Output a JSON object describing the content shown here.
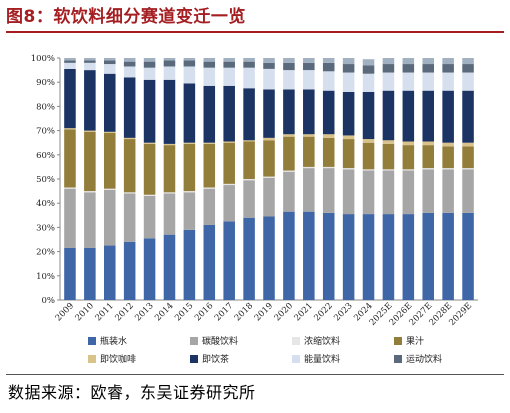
{
  "figure_title": "图8：软饮料细分赛道变迁一览",
  "source_text": "数据来源：欧睿，东吴证券研究所",
  "chart_data": {
    "type": "bar",
    "stacked": true,
    "title": "",
    "xlabel": "",
    "ylabel": "",
    "ylim": [
      0,
      100
    ],
    "grid": false,
    "legend_position": "bottom",
    "y_ticks": [
      "0%",
      "10%",
      "20%",
      "30%",
      "40%",
      "50%",
      "60%",
      "70%",
      "80%",
      "90%",
      "100%"
    ],
    "categories": [
      "2009",
      "2010",
      "2011",
      "2012",
      "2013",
      "2014",
      "2015",
      "2016",
      "2017",
      "2018",
      "2019",
      "2020",
      "2021",
      "2022",
      "2023",
      "2024",
      "2025E",
      "2026E",
      "2027E",
      "2028E",
      "2029E"
    ],
    "series": [
      {
        "name": "瓶装水",
        "color": "#3f67a8",
        "values": [
          21.5,
          21.5,
          22.5,
          24.0,
          25.5,
          27.0,
          29.0,
          31.0,
          32.5,
          34.0,
          34.5,
          36.5,
          36.5,
          36.0,
          35.5,
          35.5,
          35.5,
          35.5,
          36.0,
          36.0,
          36.0
        ]
      },
      {
        "name": "碳酸饮料",
        "color": "#a6a6a6",
        "values": [
          24.5,
          23.0,
          23.0,
          20.0,
          17.5,
          17.0,
          15.5,
          15.0,
          15.0,
          15.5,
          16.0,
          16.5,
          18.0,
          18.5,
          18.5,
          18.0,
          18.0,
          18.0,
          18.0,
          18.0,
          18.0
        ]
      },
      {
        "name": "浓缩饮料",
        "color": "#e6e6e6",
        "values": [
          0.5,
          0.5,
          0.5,
          0.5,
          0.5,
          0.5,
          0.5,
          0.5,
          0.5,
          0.5,
          0.5,
          0.5,
          0.5,
          0.5,
          0.5,
          0.5,
          0.5,
          0.5,
          0.5,
          0.5,
          0.5
        ]
      },
      {
        "name": "果汁",
        "color": "#927d3a",
        "values": [
          24.0,
          24.5,
          23.0,
          22.0,
          21.0,
          19.5,
          19.5,
          18.0,
          17.0,
          15.5,
          15.0,
          14.0,
          12.5,
          12.0,
          12.0,
          11.0,
          10.5,
          10.0,
          9.5,
          9.0,
          9.0
        ]
      },
      {
        "name": "即饮咖啡",
        "color": "#d9c38a",
        "values": [
          0.5,
          0.5,
          0.5,
          0.5,
          0.5,
          0.5,
          0.5,
          0.5,
          0.5,
          0.5,
          1.0,
          1.0,
          1.0,
          1.5,
          1.5,
          1.5,
          1.5,
          1.5,
          1.5,
          1.5,
          1.5
        ]
      },
      {
        "name": "即饮茶",
        "color": "#1c3464",
        "values": [
          24.5,
          25.0,
          24.0,
          25.0,
          26.0,
          26.5,
          24.5,
          23.5,
          23.0,
          21.5,
          20.0,
          18.5,
          18.5,
          18.0,
          18.0,
          19.5,
          20.5,
          21.0,
          21.0,
          21.5,
          21.5
        ]
      },
      {
        "name": "能量饮料",
        "color": "#d6dfee",
        "values": [
          2.5,
          3.0,
          4.0,
          4.5,
          5.0,
          5.5,
          7.0,
          7.5,
          7.5,
          8.5,
          8.5,
          8.0,
          8.0,
          8.0,
          8.0,
          7.5,
          7.5,
          7.5,
          7.5,
          7.5,
          7.5
        ]
      },
      {
        "name": "运动饮料",
        "color": "#5a6a7c",
        "values": [
          1.0,
          1.0,
          1.5,
          2.0,
          2.5,
          2.5,
          2.5,
          2.5,
          2.5,
          2.5,
          2.5,
          3.0,
          3.0,
          3.5,
          3.5,
          3.5,
          3.5,
          3.5,
          3.5,
          3.5,
          3.5
        ]
      },
      {
        "name": "亚洲特色饮料",
        "color": "#a2b1c1",
        "values": [
          1.0,
          1.0,
          1.0,
          1.5,
          1.5,
          1.0,
          1.0,
          1.5,
          1.5,
          1.5,
          2.0,
          2.0,
          2.0,
          2.0,
          2.5,
          2.5,
          2.5,
          2.5,
          2.5,
          2.5,
          2.5
        ]
      }
    ]
  }
}
